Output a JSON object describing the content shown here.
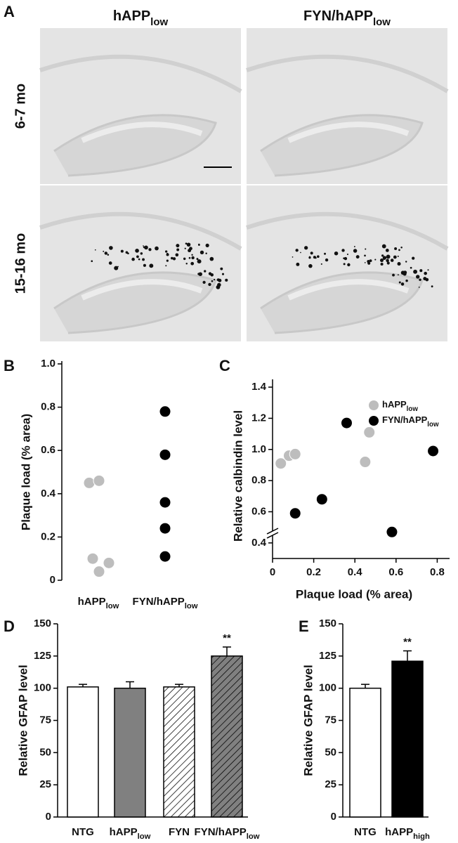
{
  "panel_labels": [
    "A",
    "B",
    "C",
    "D",
    "E"
  ],
  "micrographs": {
    "columns": [
      {
        "text": "hAPP",
        "sub": "low"
      },
      {
        "text": "FYN/hAPP",
        "sub": "low"
      }
    ],
    "rows": [
      "6-7 mo",
      "15-16 mo"
    ]
  },
  "chart_data": [
    {
      "type": "strip",
      "categories": [
        {
          "text": "hAPP",
          "sub": "low"
        },
        {
          "text": "FYN/hAPP",
          "sub": "low"
        }
      ],
      "values": [
        [
          0.45,
          0.46,
          0.1,
          0.08,
          0.04
        ],
        [
          0.78,
          0.58,
          0.36,
          0.24,
          0.11
        ]
      ],
      "colors": [
        "#bdbdbd",
        "#000000"
      ],
      "ylabel": "Plaque load (% area)",
      "ylim": [
        0,
        1
      ],
      "yticks": [
        0,
        0.2,
        0.4,
        0.6,
        0.8,
        {
          "value": 1,
          "label": "1.0"
        }
      ]
    },
    {
      "type": "scatter",
      "series": [
        {
          "name": {
            "text": "hAPP",
            "sub": "low"
          },
          "color": "#bdbdbd",
          "x": [
            0.04,
            0.08,
            0.11,
            0.45,
            0.47
          ],
          "y": [
            0.91,
            0.96,
            0.97,
            0.92,
            1.11
          ]
        },
        {
          "name": {
            "text": "FYN/hAPP",
            "sub": "low"
          },
          "color": "#000000",
          "x": [
            0.11,
            0.24,
            0.36,
            0.58,
            0.78
          ],
          "y": [
            0.59,
            0.68,
            1.17,
            0.47,
            0.99
          ]
        }
      ],
      "xlabel": "Plaque load (% area)",
      "ylabel": "Relative calbindin level",
      "xlim": [
        0,
        0.86
      ],
      "xticks": [
        0,
        0.2,
        0.4,
        0.6,
        0.8
      ],
      "ylim": [
        0.3,
        1.45
      ],
      "yticks": [
        0.4,
        0.6,
        0.8,
        {
          "value": 1,
          "label": "1.0"
        },
        1.2,
        1.4
      ]
    },
    {
      "type": "bar",
      "categories": [
        "NTG",
        {
          "text": "hAPP",
          "sub": "low"
        },
        "FYN",
        {
          "text": "FYN/hAPP",
          "sub": "low"
        }
      ],
      "values": [
        101,
        100,
        101,
        125
      ],
      "errors": [
        2,
        5,
        2,
        7
      ],
      "colors": [
        "#ffffff",
        "#808080",
        "#ffffff",
        "#808080"
      ],
      "hatch": [
        false,
        false,
        true,
        true
      ],
      "significance": [
        null,
        null,
        null,
        "**"
      ],
      "ylabel": "Relative GFAP level",
      "ylim": [
        0,
        150
      ],
      "yticks": [
        0,
        25,
        50,
        75,
        100,
        125,
        150
      ]
    },
    {
      "type": "bar",
      "categories": [
        "NTG",
        {
          "text": "hAPP",
          "sub": "high"
        }
      ],
      "values": [
        100,
        121
      ],
      "errors": [
        3,
        8
      ],
      "colors": [
        "#ffffff",
        "#000000"
      ],
      "hatch": [
        false,
        false
      ],
      "significance": [
        null,
        "**"
      ],
      "ylabel": "Relative GFAP level",
      "ylim": [
        0,
        150
      ],
      "yticks": [
        0,
        25,
        50,
        75,
        100,
        125,
        150
      ]
    }
  ]
}
